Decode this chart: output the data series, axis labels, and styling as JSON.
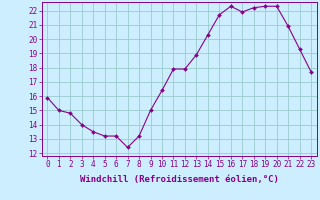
{
  "x": [
    0,
    1,
    2,
    3,
    4,
    5,
    6,
    7,
    8,
    9,
    10,
    11,
    12,
    13,
    14,
    15,
    16,
    17,
    18,
    19,
    20,
    21,
    22,
    23
  ],
  "y": [
    15.9,
    15.0,
    14.8,
    14.0,
    13.5,
    13.2,
    13.2,
    12.4,
    13.2,
    15.0,
    16.4,
    17.9,
    17.9,
    18.9,
    20.3,
    21.7,
    22.3,
    21.9,
    22.2,
    22.3,
    22.3,
    20.9,
    19.3,
    17.7
  ],
  "ylim": [
    11.8,
    22.6
  ],
  "yticks": [
    12,
    13,
    14,
    15,
    16,
    17,
    18,
    19,
    20,
    21,
    22
  ],
  "xlim": [
    -0.5,
    23.5
  ],
  "xticks": [
    0,
    1,
    2,
    3,
    4,
    5,
    6,
    7,
    8,
    9,
    10,
    11,
    12,
    13,
    14,
    15,
    16,
    17,
    18,
    19,
    20,
    21,
    22,
    23
  ],
  "xlabel": "Windchill (Refroidissement éolien,°C)",
  "line_color": "#880088",
  "marker": "D",
  "marker_size": 2.0,
  "bg_color": "#cceeff",
  "grid_color": "#99cccc",
  "axis_color": "#880088",
  "tick_color": "#880088",
  "label_color": "#880088",
  "tick_fontsize": 5.5,
  "xlabel_fontsize": 6.5
}
